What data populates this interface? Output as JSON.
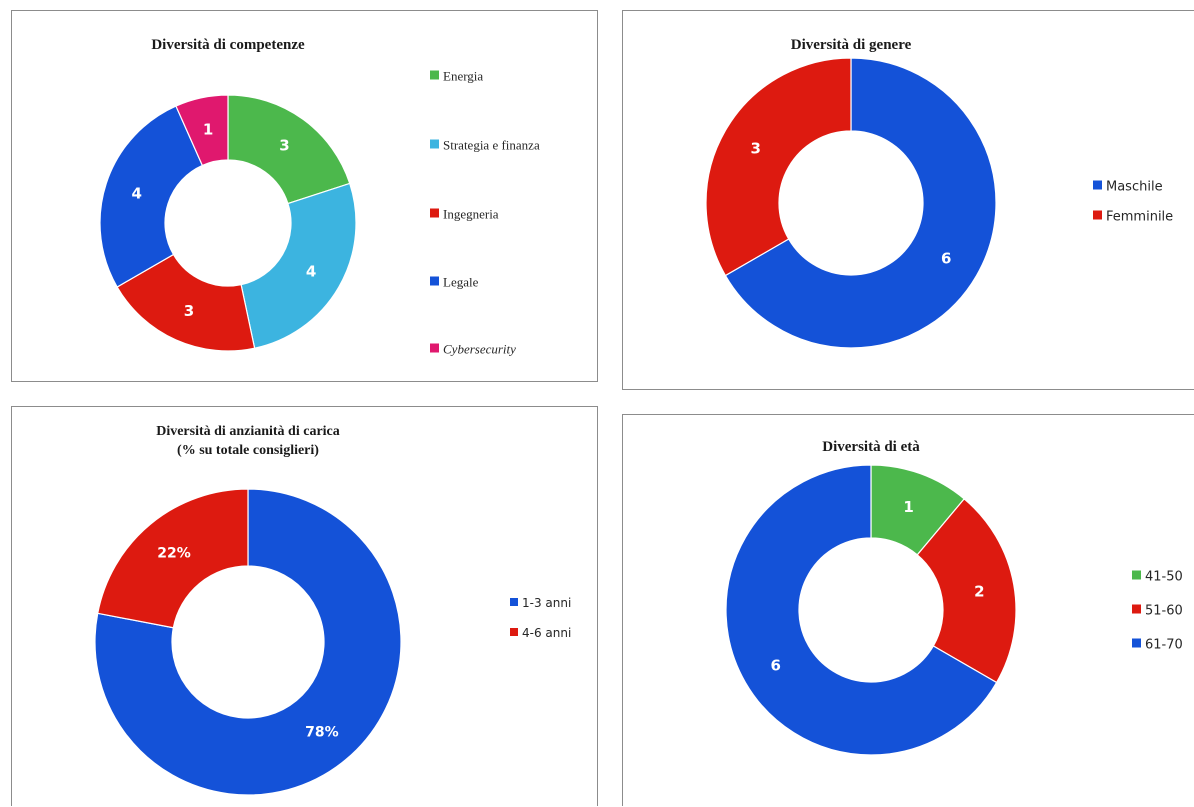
{
  "colors": {
    "green": "#4cb84c",
    "cyan": "#3cb4e0",
    "red": "#dd1a10",
    "blue": "#1452d8",
    "magenta": "#e0186e"
  },
  "chart_data": [
    {
      "type": "pie",
      "style": "donut",
      "title": "Diversità di competenze",
      "categories": [
        "Energia",
        "Strategia e finanza",
        "Ingegneria",
        "Legale",
        "Cybersecurity"
      ],
      "values": [
        3,
        4,
        3,
        4,
        1
      ],
      "value_labels": [
        "3",
        "4",
        "3",
        "4",
        "1"
      ],
      "colors": [
        "#4cb84c",
        "#3cb4e0",
        "#dd1a10",
        "#1452d8",
        "#e0186e"
      ],
      "legend_position": "right"
    },
    {
      "type": "pie",
      "style": "donut",
      "title": "Diversità di genere",
      "categories": [
        "Maschile",
        "Femminile"
      ],
      "values": [
        6,
        3
      ],
      "value_labels": [
        "6",
        "3"
      ],
      "colors": [
        "#1452d8",
        "#dd1a10"
      ],
      "legend_position": "right"
    },
    {
      "type": "pie",
      "style": "donut",
      "title": "Diversità di anzianità di carica",
      "subtitle": "(% su totale consiglieri)",
      "categories": [
        "1-3 anni",
        "4-6 anni"
      ],
      "values": [
        78,
        22
      ],
      "value_labels": [
        "78%",
        "22%"
      ],
      "colors": [
        "#1452d8",
        "#dd1a10"
      ],
      "legend_position": "right"
    },
    {
      "type": "pie",
      "style": "donut",
      "title": "Diversità di età",
      "categories": [
        "41-50",
        "51-60",
        "61-70"
      ],
      "values": [
        1,
        2,
        6
      ],
      "value_labels": [
        "1",
        "2",
        "6"
      ],
      "colors": [
        "#4cb84c",
        "#dd1a10",
        "#1452d8"
      ],
      "legend_position": "right"
    }
  ]
}
